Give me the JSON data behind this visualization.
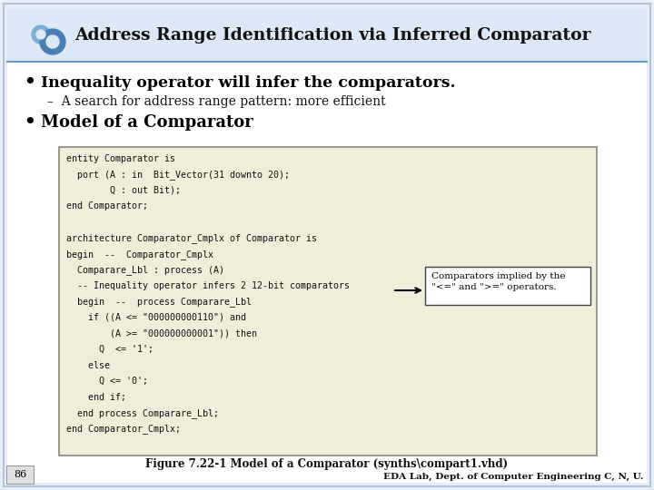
{
  "title": "Address Range Identification via Inferred Comparator",
  "slide_bg": "#e8eef5",
  "content_bg": "#ffffff",
  "header_bg": "#dce8f5",
  "header_line_color": "#6699cc",
  "bullet1": "Inequality operator will infer the comparators.",
  "sub_bullet1": "A search for address range pattern: more efficient",
  "bullet2": "Model of a Comparator",
  "code_lines": [
    "entity Comparator is",
    "  port (A : in  Bit_Vector(31 downto 20);",
    "        Q : out Bit);",
    "end Comparator;",
    "",
    "architecture Comparator_Cmplx of Comparator is",
    "begin  --  Comparator_Cmplx",
    "  Comparare_Lbl : process (A)",
    "  -- Inequality operator infers 2 12-bit comparators",
    "  begin  --  process Comparare_Lbl",
    "    if ((A <= \"000000000110\") and",
    "        (A >= \"000000000001\")) then",
    "      Q  <= '1';",
    "    else",
    "      Q <= '0';",
    "    end if;",
    "  end process Comparare_Lbl;",
    "end Comparator_Cmplx;"
  ],
  "annotation_text": "Comparators implied by the\n\"<=\" and \">=\" operators.",
  "figure_caption": "Figure 7.22-1 Model of a Comparator (synths\\compart1.vhd)",
  "footer": "EDA Lab, Dept. of Computer Engineering C, N, U.",
  "page_num": "86",
  "icon_color1": "#7bafd4",
  "icon_color2": "#4a7fb5",
  "code_bg": "#f0edda",
  "annotation_bg": "#ffffff",
  "annotation_border": "#444444"
}
